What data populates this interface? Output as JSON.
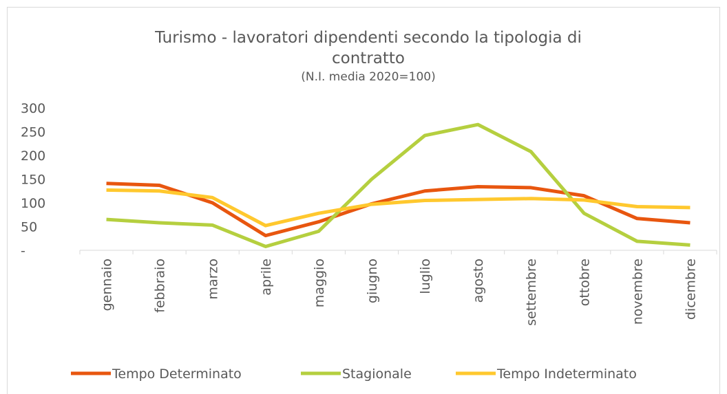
{
  "chart_data": {
    "type": "line",
    "title": "Turismo - lavoratori dipendenti secondo la tipologia di contratto",
    "subtitle": "(N.I. media 2020=100)",
    "categories": [
      "gennaio",
      "febbraio",
      "marzo",
      "aprile",
      "maggio",
      "giugno",
      "luglio",
      "agosto",
      "settembre",
      "ottobre",
      "novembre",
      "dicembre"
    ],
    "series": [
      {
        "name": "Tempo Determinato",
        "color": "#e8560f",
        "values": [
          141,
          137,
          100,
          31,
          60,
          98,
          125,
          134,
          132,
          115,
          67,
          58
        ]
      },
      {
        "name": "Stagionale",
        "color": "#b5cf3f",
        "values": [
          65,
          58,
          53,
          8,
          40,
          150,
          242,
          265,
          208,
          78,
          19,
          11
        ]
      },
      {
        "name": "Tempo Indeterminato",
        "color": "#ffc82e",
        "values": [
          127,
          125,
          111,
          52,
          78,
          97,
          105,
          107,
          109,
          106,
          92,
          90
        ]
      }
    ],
    "ylim": [
      0,
      300
    ],
    "yticks": [
      {
        "value": 0,
        "label": "-"
      },
      50,
      100,
      150,
      200,
      250,
      300
    ],
    "legend": "bottom"
  }
}
